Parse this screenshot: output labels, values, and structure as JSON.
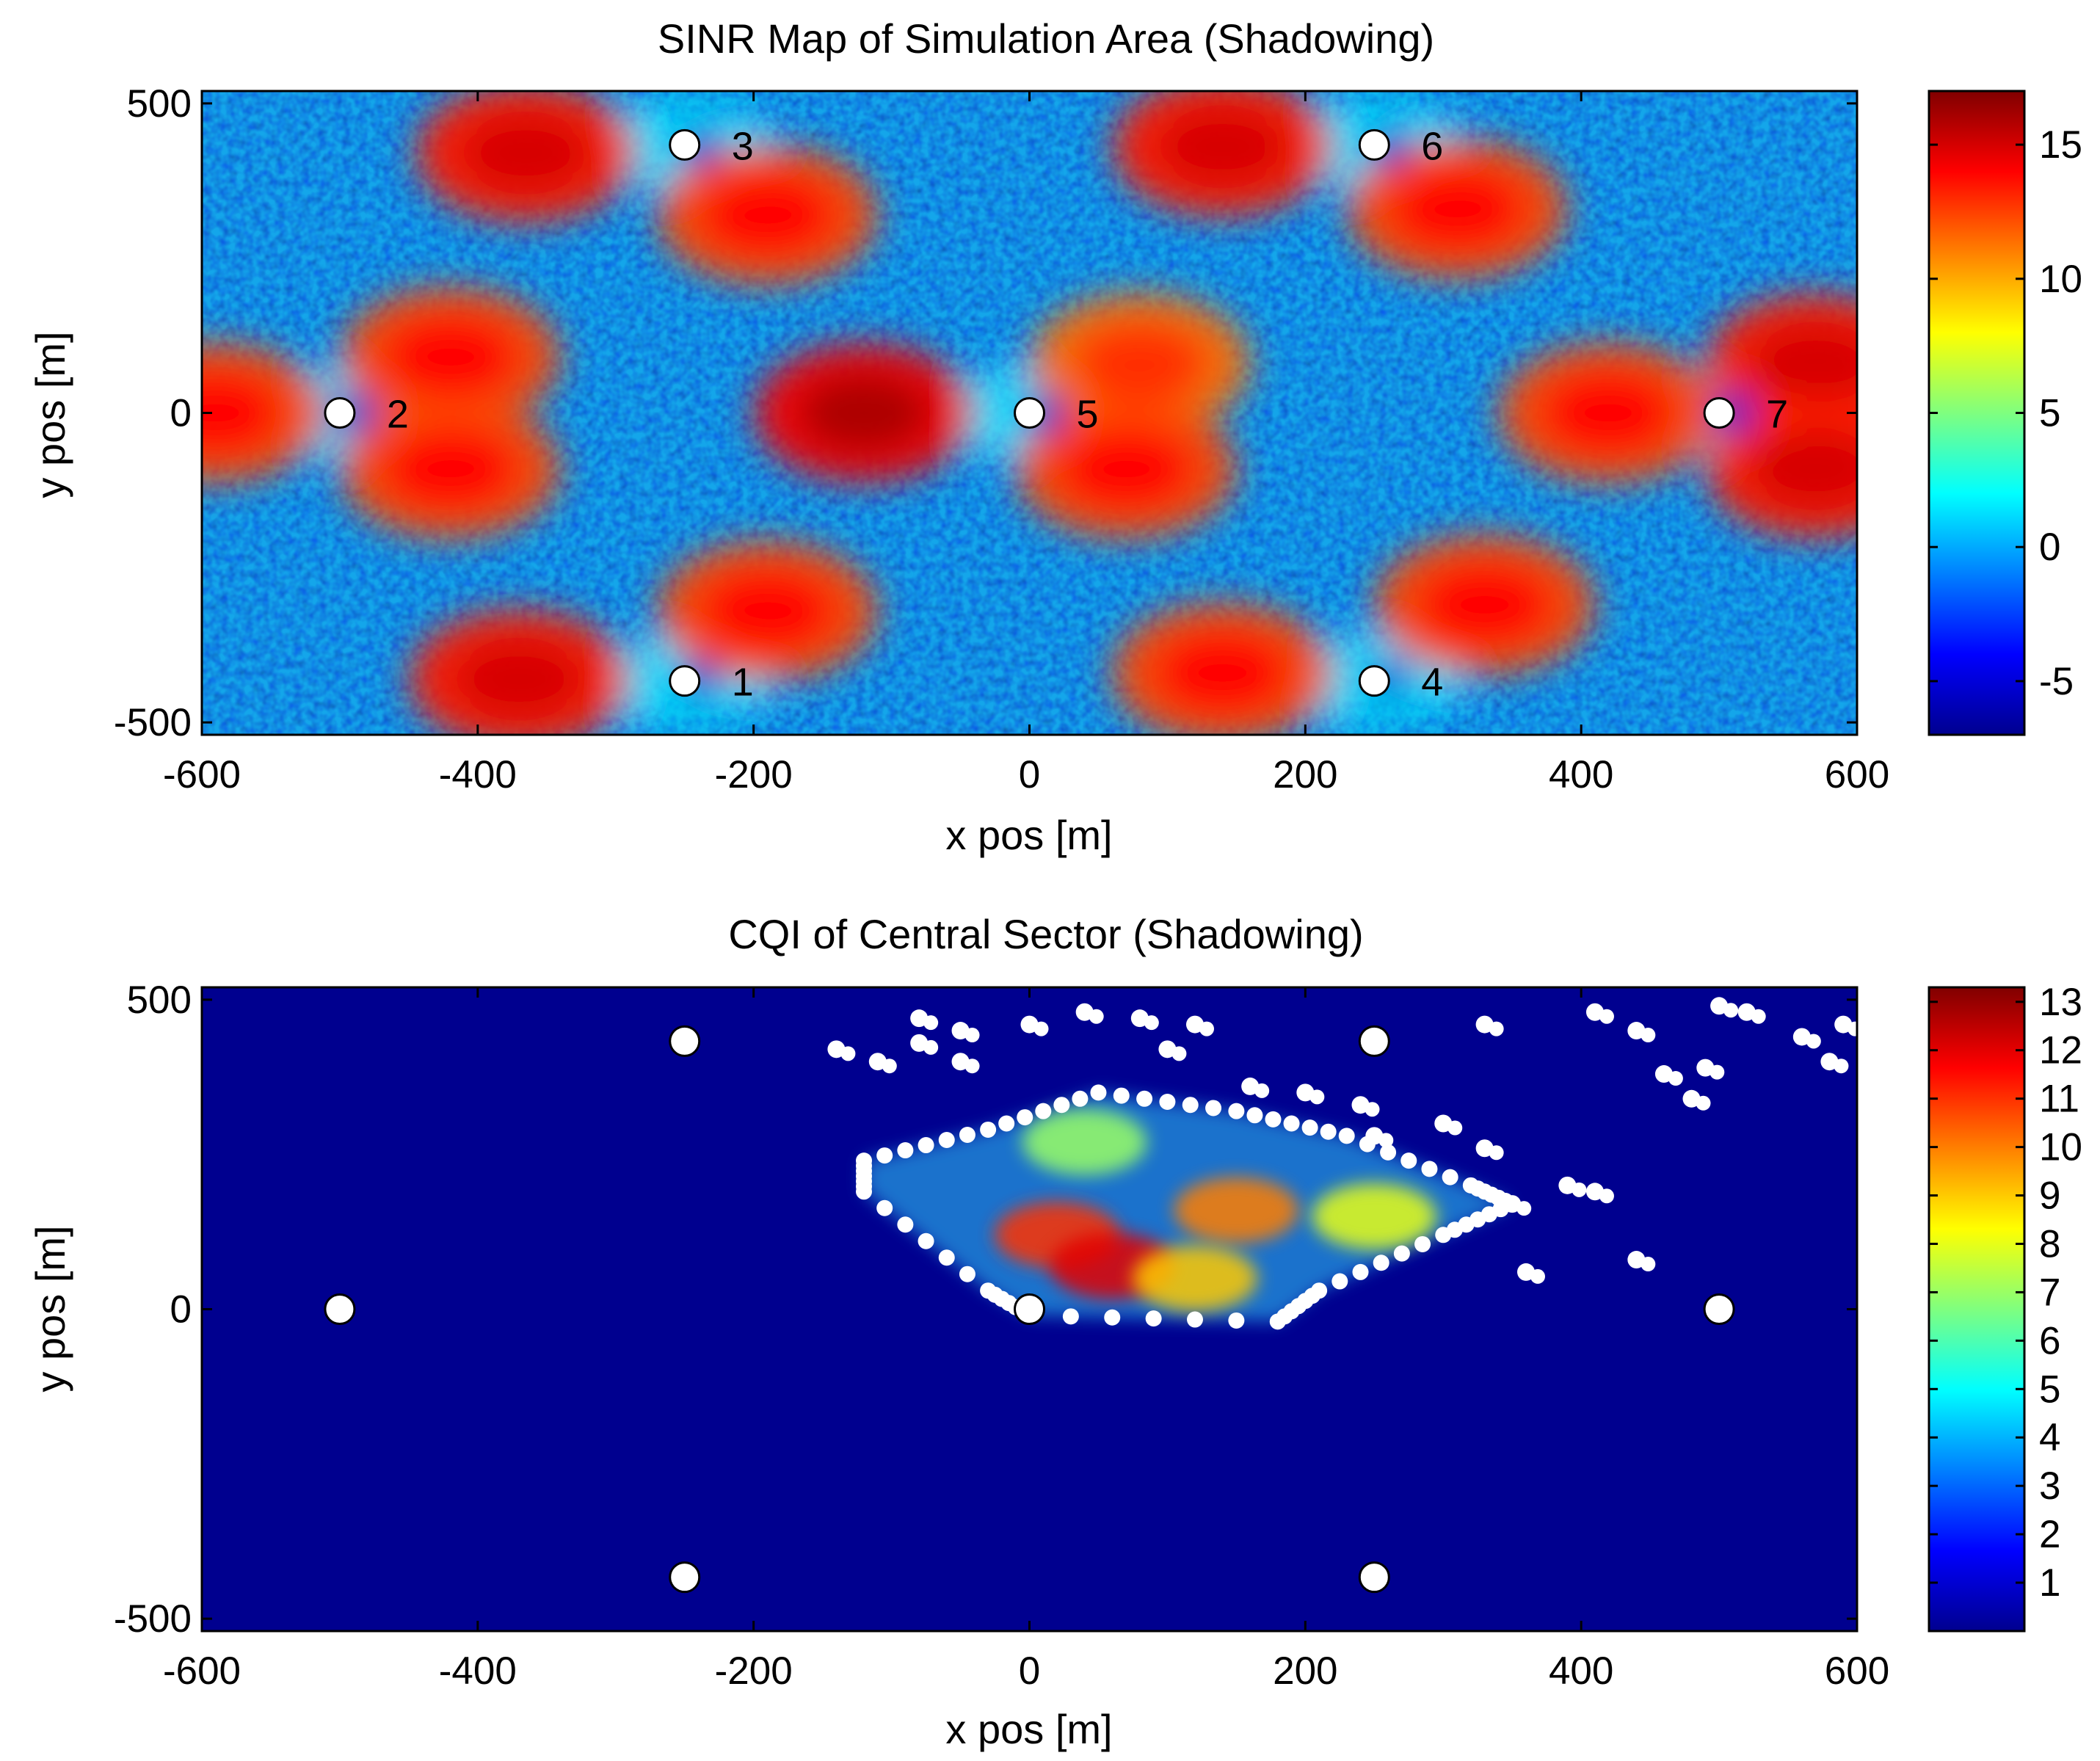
{
  "chart_data": [
    {
      "type": "heatmap",
      "title": "SINR Map of Simulation Area (Shadowing)",
      "xlabel": "x pos [m]",
      "ylabel": "y pos [m]",
      "xlim": [
        -600,
        600
      ],
      "ylim": [
        -520,
        520
      ],
      "x_ticks": [
        -600,
        -400,
        -200,
        0,
        200,
        400,
        600
      ],
      "y_ticks": [
        -500,
        0,
        500
      ],
      "colorbar": {
        "min": -7,
        "max": 17,
        "ticks": [
          -5,
          0,
          5,
          10,
          15
        ],
        "colormap": "jet"
      },
      "sites": [
        {
          "id": "1",
          "x": -250,
          "y": -433
        },
        {
          "id": "2",
          "x": -500,
          "y": 0
        },
        {
          "id": "3",
          "x": -250,
          "y": 433
        },
        {
          "id": "4",
          "x": 250,
          "y": -433
        },
        {
          "id": "5",
          "x": 0,
          "y": 0
        },
        {
          "id": "6",
          "x": 250,
          "y": 433
        },
        {
          "id": "7",
          "x": 500,
          "y": 0
        }
      ],
      "high_sinr_zones": [
        {
          "x": -365,
          "y": 420,
          "peak": 15
        },
        {
          "x": -190,
          "y": 320,
          "peak": 14
        },
        {
          "x": 140,
          "y": 430,
          "peak": 15
        },
        {
          "x": 310,
          "y": 330,
          "peak": 14
        },
        {
          "x": -420,
          "y": 90,
          "peak": 14
        },
        {
          "x": -590,
          "y": 0,
          "peak": 14
        },
        {
          "x": -420,
          "y": -90,
          "peak": 14
        },
        {
          "x": -120,
          "y": 0,
          "peak": 16
        },
        {
          "x": 80,
          "y": 80,
          "peak": 13
        },
        {
          "x": 70,
          "y": -90,
          "peak": 14
        },
        {
          "x": 420,
          "y": 0,
          "peak": 14
        },
        {
          "x": 570,
          "y": 80,
          "peak": 15
        },
        {
          "x": 570,
          "y": -90,
          "peak": 15
        },
        {
          "x": -190,
          "y": -320,
          "peak": 14
        },
        {
          "x": -370,
          "y": -430,
          "peak": 15
        },
        {
          "x": 140,
          "y": -420,
          "peak": 14
        },
        {
          "x": 330,
          "y": -310,
          "peak": 14
        }
      ]
    },
    {
      "type": "heatmap",
      "title": "CQI of Central Sector (Shadowing)",
      "xlabel": "x pos [m]",
      "ylabel": "y pos [m]",
      "xlim": [
        -600,
        600
      ],
      "ylim": [
        -520,
        520
      ],
      "x_ticks": [
        -600,
        -400,
        -200,
        0,
        200,
        400,
        600
      ],
      "y_ticks": [
        -500,
        0,
        500
      ],
      "colorbar": {
        "min": 0,
        "max": 13.3,
        "ticks": [
          1,
          2,
          3,
          4,
          5,
          6,
          7,
          8,
          9,
          10,
          11,
          12,
          13
        ],
        "colormap": "jet"
      },
      "background_cqi": 0,
      "sites": [
        {
          "x": -250,
          "y": -433
        },
        {
          "x": -500,
          "y": 0
        },
        {
          "x": -250,
          "y": 433
        },
        {
          "x": 250,
          "y": -433
        },
        {
          "x": 0,
          "y": 0
        },
        {
          "x": 250,
          "y": 433
        },
        {
          "x": 500,
          "y": 0
        }
      ],
      "coverage_region": {
        "polygon": [
          [
            -120,
            240
          ],
          [
            -30,
            290
          ],
          [
            50,
            350
          ],
          [
            150,
            320
          ],
          [
            230,
            280
          ],
          [
            320,
            200
          ],
          [
            350,
            170
          ],
          [
            300,
            120
          ],
          [
            210,
            30
          ],
          [
            180,
            -20
          ],
          [
            0,
            -10
          ],
          [
            -30,
            30
          ],
          [
            -120,
            190
          ]
        ],
        "hot_spots": [
          {
            "x": 20,
            "y": 120,
            "cqi": 11
          },
          {
            "x": 60,
            "y": 70,
            "cqi": 12
          },
          {
            "x": 150,
            "y": 160,
            "cqi": 10
          },
          {
            "x": 120,
            "y": 50,
            "cqi": 9
          },
          {
            "x": 250,
            "y": 150,
            "cqi": 8
          },
          {
            "x": 40,
            "y": 270,
            "cqi": 7
          }
        ]
      },
      "outage_clusters": [
        {
          "x": -80,
          "y": 470
        },
        {
          "x": -50,
          "y": 450
        },
        {
          "x": 0,
          "y": 460
        },
        {
          "x": 40,
          "y": 480
        },
        {
          "x": -110,
          "y": 400
        },
        {
          "x": -140,
          "y": 420
        },
        {
          "x": -50,
          "y": 400
        },
        {
          "x": 80,
          "y": 470
        },
        {
          "x": 120,
          "y": 460
        },
        {
          "x": 100,
          "y": 420
        },
        {
          "x": 160,
          "y": 360
        },
        {
          "x": 200,
          "y": 350
        },
        {
          "x": 240,
          "y": 330
        },
        {
          "x": 300,
          "y": 300
        },
        {
          "x": 330,
          "y": 260
        },
        {
          "x": 250,
          "y": 280
        },
        {
          "x": 350,
          "y": 170
        },
        {
          "x": 360,
          "y": 60
        },
        {
          "x": 390,
          "y": 200
        },
        {
          "x": 410,
          "y": 190
        },
        {
          "x": 440,
          "y": 80
        },
        {
          "x": 410,
          "y": 480
        },
        {
          "x": 440,
          "y": 450
        },
        {
          "x": 460,
          "y": 380
        },
        {
          "x": 490,
          "y": 390
        },
        {
          "x": 500,
          "y": 490
        },
        {
          "x": 520,
          "y": 480
        },
        {
          "x": 560,
          "y": 440
        },
        {
          "x": 580,
          "y": 400
        },
        {
          "x": 590,
          "y": 460
        },
        {
          "x": 480,
          "y": 340
        },
        {
          "x": 330,
          "y": 460
        },
        {
          "x": -80,
          "y": 430
        }
      ]
    }
  ]
}
